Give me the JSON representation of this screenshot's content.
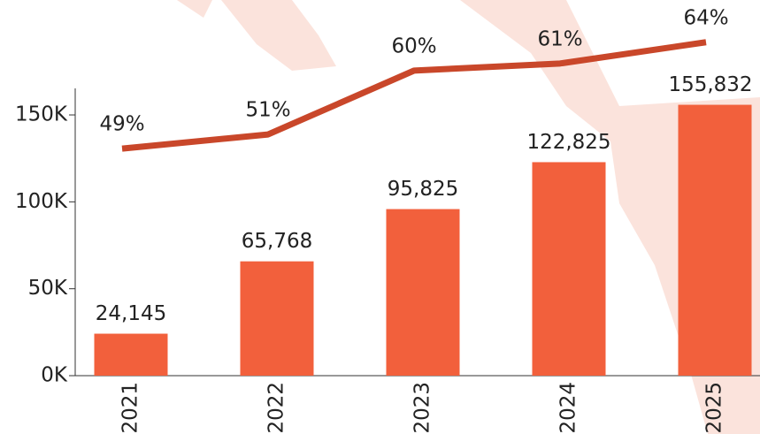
{
  "chart_data": {
    "type": "combo",
    "categories": [
      "2021",
      "2022",
      "2023",
      "2024",
      "2025"
    ],
    "series": [
      {
        "type": "bar",
        "color": "#f2603c",
        "values": [
          24145,
          65768,
          95825,
          122825,
          155832
        ],
        "value_labels": [
          "24,145",
          "65,768",
          "95,825",
          "122,825",
          "155,832"
        ]
      },
      {
        "type": "line",
        "axis": "y2",
        "color": "#c9472a",
        "values": [
          49,
          51,
          60,
          61,
          64
        ],
        "value_labels": [
          "49%",
          "51%",
          "60%",
          "61%",
          "64%"
        ]
      }
    ],
    "ylim": [
      0,
      200000
    ],
    "yticks": [
      {
        "value": 0,
        "label": "0K"
      },
      {
        "value": 50000,
        "label": "50K"
      },
      {
        "value": 100000,
        "label": "100K"
      },
      {
        "value": 150000,
        "label": "150K"
      }
    ],
    "y2lim": [
      17,
      66
    ]
  }
}
